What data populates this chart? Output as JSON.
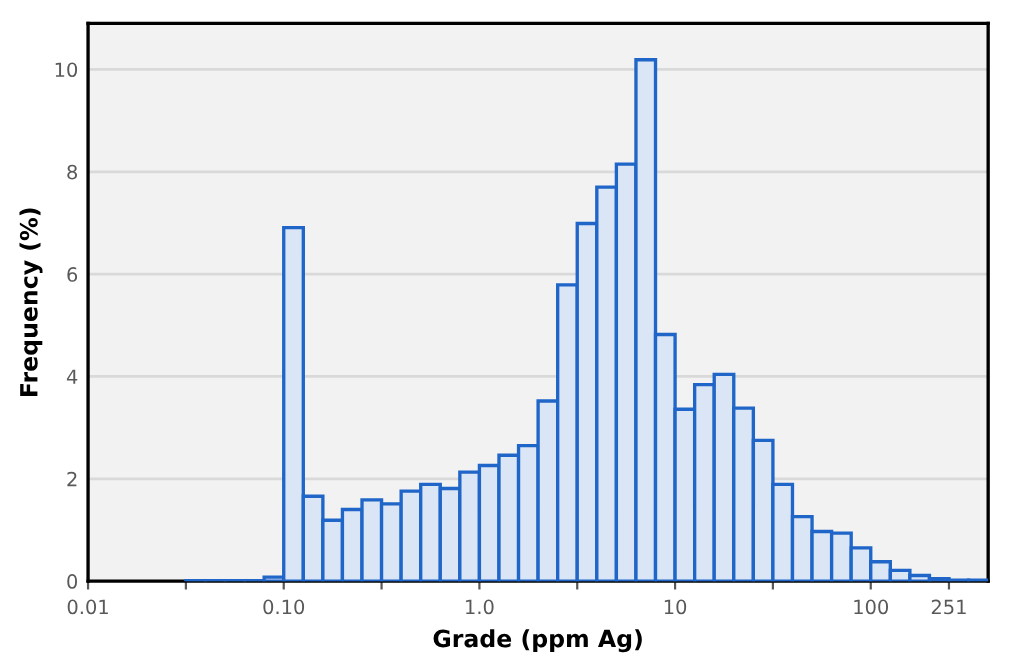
{
  "chart_data": {
    "type": "histogram",
    "xlabel": "Grade (ppm Ag)",
    "ylabel": "Frequency (%)",
    "bins": [
      0.03162,
      0.03981,
      0.05012,
      0.0631,
      0.07943,
      0.1,
      0.1259,
      0.1585,
      0.1995,
      0.2512,
      0.3162,
      0.3981,
      0.5012,
      0.631,
      0.7943,
      1,
      1.259,
      1.585,
      1.995,
      2.512,
      3.162,
      3.981,
      5.012,
      6.31,
      7.943,
      10,
      12.59,
      15.85,
      19.95,
      25.12,
      31.62,
      39.81,
      50.12,
      63.1,
      79.43,
      100,
      125.9,
      158.5,
      199.5,
      251.2,
      316.2,
      398.1
    ],
    "values": [
      0.01,
      0.01,
      0.01,
      0.01,
      0.08,
      6.91,
      1.66,
      1.19,
      1.4,
      1.59,
      1.51,
      1.76,
      1.89,
      1.81,
      2.13,
      2.26,
      2.46,
      2.65,
      3.52,
      5.79,
      6.99,
      7.7,
      8.15,
      10.19,
      4.82,
      3.36,
      3.84,
      4.04,
      3.38,
      2.75,
      1.89,
      1.26,
      0.97,
      0.94,
      0.65,
      0.38,
      0.21,
      0.11,
      0.05,
      0.02,
      0.02
    ],
    "color": "#dae5f6",
    "log": "x",
    "xlim": [
      0.01,
      398.1
    ],
    "xticks": [
      {
        "value": 0.01,
        "label": "0.01"
      },
      {
        "value": 0.03162,
        "label": null
      },
      {
        "value": 0.1,
        "label": "0.10"
      },
      {
        "value": 0.3162,
        "label": null
      },
      {
        "value": 1,
        "label": "1.0"
      },
      {
        "value": 3.162,
        "label": null
      },
      10,
      {
        "value": 31.62,
        "label": null
      },
      100,
      251
    ],
    "ylim": [
      0,
      10.9
    ],
    "yticks": [
      0,
      2,
      4,
      6,
      8,
      10
    ],
    "grid": "y"
  }
}
